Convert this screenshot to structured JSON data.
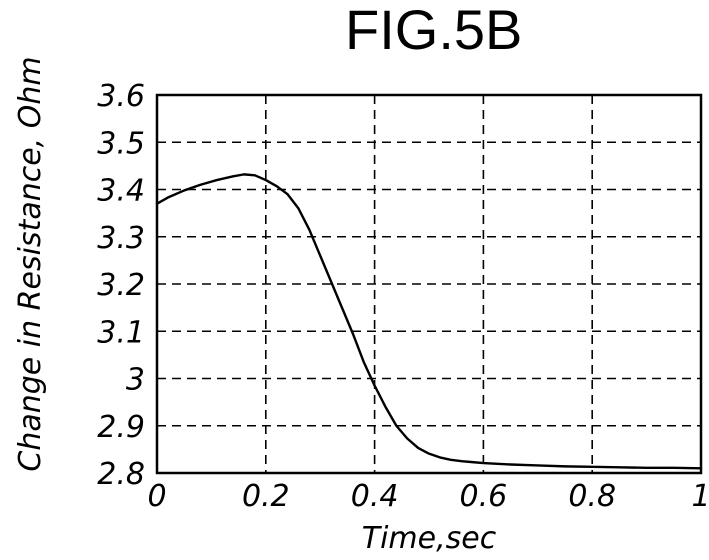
{
  "figure": {
    "title": "FIG.5B"
  },
  "chart_data": {
    "type": "line",
    "title": "FIG.5B",
    "xlabel": "Time,sec",
    "ylabel": "Change in Resistance, Ohm",
    "xlim": [
      0,
      1
    ],
    "ylim": [
      2.8,
      3.6
    ],
    "grid": true,
    "grid_style": "dashed",
    "x_ticks": [
      0,
      0.2,
      0.4,
      0.6,
      0.8,
      1
    ],
    "x_tick_labels": [
      "0",
      "0.2",
      "0.4",
      "0.6",
      "0.8",
      "1"
    ],
    "y_ticks": [
      2.8,
      2.9,
      3.0,
      3.1,
      3.2,
      3.3,
      3.4,
      3.5,
      3.6
    ],
    "y_tick_labels": [
      "2.8",
      "2.9",
      "3",
      "3.1",
      "3.2",
      "3.3",
      "3.4",
      "3.5",
      "3.6"
    ],
    "line_color": "#000000",
    "series": [
      {
        "x": [
          0,
          0.02,
          0.05,
          0.08,
          0.11,
          0.14,
          0.16,
          0.18,
          0.2,
          0.22,
          0.24,
          0.26,
          0.28,
          0.3,
          0.32,
          0.34,
          0.36,
          0.38,
          0.4,
          0.42,
          0.44,
          0.46,
          0.48,
          0.5,
          0.52,
          0.54,
          0.56,
          0.58,
          0.6,
          0.65,
          0.7,
          0.75,
          0.8,
          0.85,
          0.9,
          0.95,
          1.0
        ],
        "y": [
          3.37,
          3.383,
          3.398,
          3.41,
          3.42,
          3.428,
          3.432,
          3.43,
          3.42,
          3.407,
          3.39,
          3.36,
          3.315,
          3.26,
          3.205,
          3.15,
          3.095,
          3.035,
          2.985,
          2.94,
          2.9,
          2.873,
          2.853,
          2.841,
          2.833,
          2.828,
          2.825,
          2.823,
          2.821,
          2.818,
          2.816,
          2.814,
          2.813,
          2.812,
          2.811,
          2.811,
          2.81
        ]
      }
    ]
  }
}
